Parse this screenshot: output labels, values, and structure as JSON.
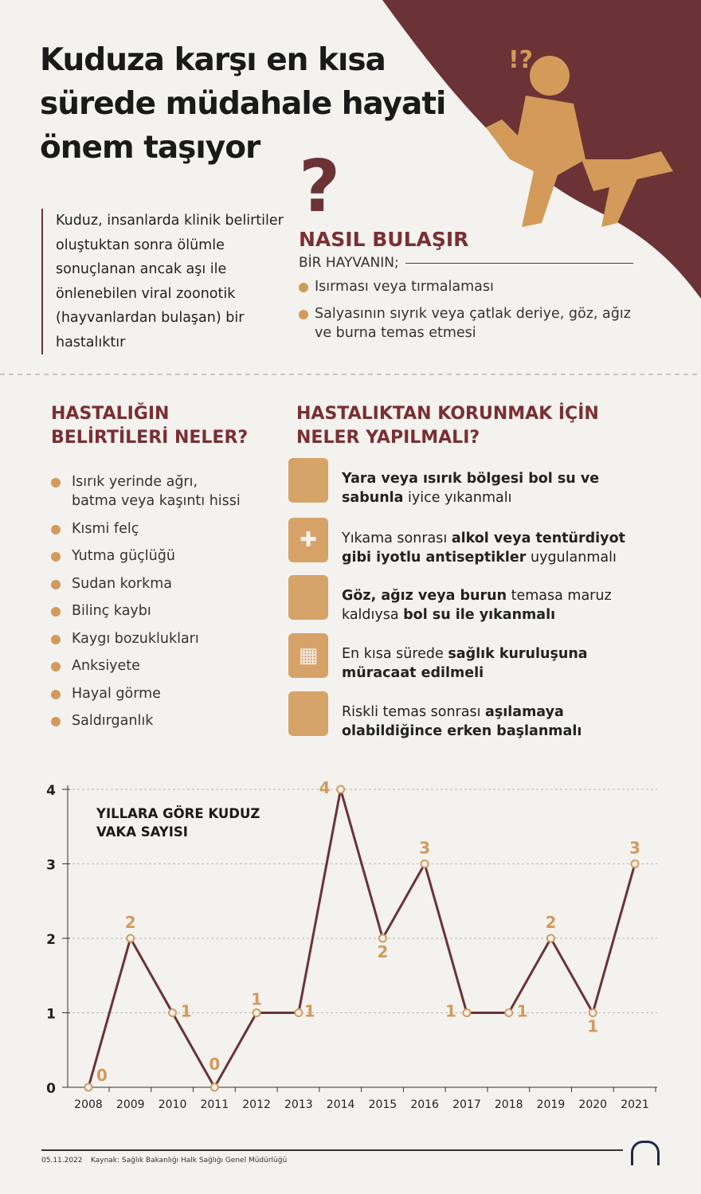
{
  "title": "Kuduza karşı en kısa sürede müdahale hayati önem taşıyor",
  "intro": "Kuduz, insanlarda klinik belirtiler oluştuktan sonra ölümle sonuçlanan ancak aşı ile önlenebilen viral zoonotik (hayvanlardan bulaşan) bir hastalıktır",
  "transmission": {
    "heading": "NASIL BULAŞIR",
    "subheading": "BİR HAYVANIN;",
    "items": [
      "Isırması veya tırmalaması",
      "Salyasının sıyrık veya çatlak deriye, göz, ağız ve burna temas etmesi"
    ]
  },
  "symptoms": {
    "heading": "HASTALIĞIN BELİRTİLERİ NELER?",
    "items": [
      "Isırık yerinde ağrı, batma veya kaşıntı hissi",
      "Kısmi felç",
      "Yutma güçlüğü",
      "Sudan korkma",
      "Bilinç kaybı",
      "Kaygı bozuklukları",
      "Anksiyete",
      "Hayal görme",
      "Saldırganlık"
    ]
  },
  "prevention": {
    "heading": "HASTALIKTAN KORUNMAK İÇİN NELER YAPILMALI?",
    "items": [
      {
        "icon": "washing-wound-icon",
        "parts": [
          {
            "t": "Yara veya ısırık bölgesi bol su ve sabunla",
            "b": true
          },
          {
            "t": " iyice yıkanmalı",
            "b": false
          }
        ]
      },
      {
        "icon": "antiseptic-icon",
        "parts": [
          {
            "t": "Yıkama sonrası ",
            "b": false
          },
          {
            "t": "alkol veya tentürdiyot gibi iyotlu antiseptikler",
            "b": true
          },
          {
            "t": " uygulanmalı",
            "b": false
          }
        ]
      },
      {
        "icon": "face-washing-icon",
        "parts": [
          {
            "t": "Göz, ağız veya burun",
            "b": true
          },
          {
            "t": " temasa maruz kaldıysa ",
            "b": false
          },
          {
            "t": "bol su ile yıkanmalı",
            "b": true
          }
        ]
      },
      {
        "icon": "hospital-icon",
        "parts": [
          {
            "t": "En kısa sürede ",
            "b": false
          },
          {
            "t": "sağlık kuruluşuna müracaat edilmeli",
            "b": true
          }
        ]
      },
      {
        "icon": "vaccine-icon",
        "parts": [
          {
            "t": "Riskli temas sonrası ",
            "b": false
          },
          {
            "t": "aşılamaya olabildiğince erken başlanmalı",
            "b": true
          }
        ]
      }
    ]
  },
  "chart_data": {
    "type": "line",
    "title": "YILLARA GÖRE KUDUZ VAKA SAYISI",
    "categories": [
      "2008",
      "2009",
      "2010",
      "2011",
      "2012",
      "2013",
      "2014",
      "2015",
      "2016",
      "2017",
      "2018",
      "2019",
      "2020",
      "2021"
    ],
    "values": [
      0,
      2,
      1,
      0,
      1,
      1,
      4,
      2,
      3,
      1,
      1,
      2,
      1,
      3
    ],
    "ylim": [
      0,
      4
    ],
    "yticks": [
      0,
      1,
      2,
      3,
      4
    ],
    "grid": true,
    "line_color": "#6b3336",
    "label_color": "#d39a5a"
  },
  "footer": {
    "date": "05.11.2022",
    "source": "Kaynak: Sağlık Bakanlığı Halk Sağlığı Genel Müdürlüğü",
    "logo": "AA"
  },
  "colors": {
    "brand": "#6b3336",
    "accent": "#d39a5a",
    "background": "#f3f2ef"
  }
}
